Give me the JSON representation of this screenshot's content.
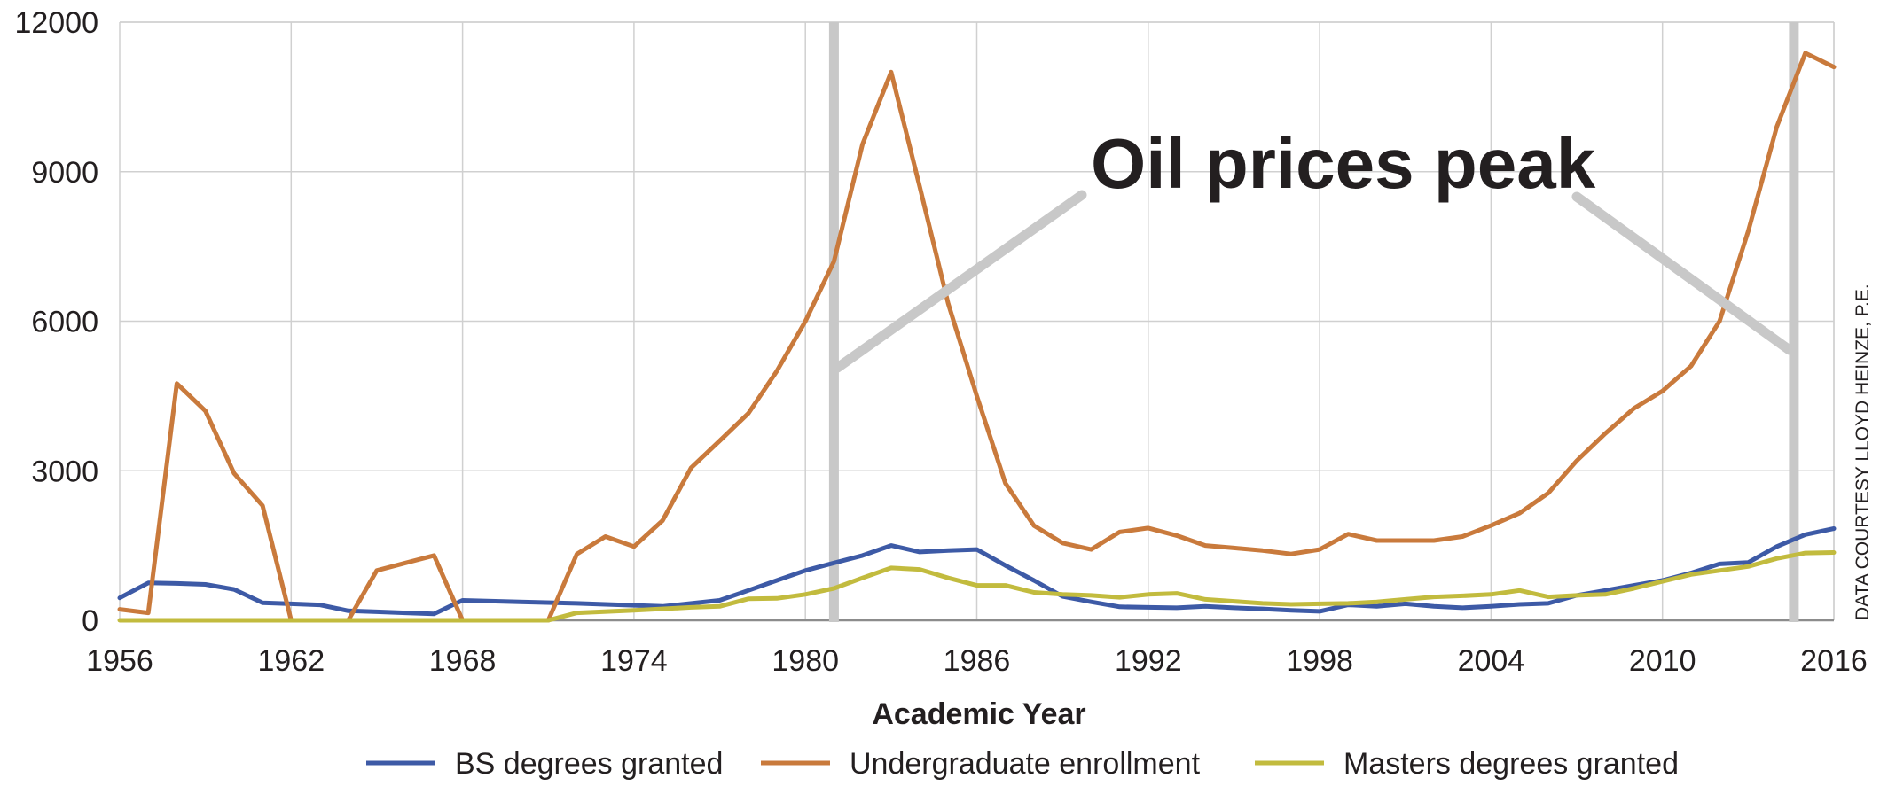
{
  "chart_data": {
    "type": "line",
    "title": "",
    "xlabel": "Academic Year",
    "ylabel": "",
    "xlim": [
      1956,
      2016
    ],
    "ylim": [
      0,
      12000
    ],
    "x_ticks": [
      1956,
      1962,
      1968,
      1974,
      1980,
      1986,
      1992,
      1998,
      2004,
      2010,
      2016
    ],
    "y_ticks": [
      0,
      3000,
      6000,
      9000,
      12000
    ],
    "grid": true,
    "legend_position": "bottom",
    "annotation": {
      "text": "Oil prices peak",
      "marked_years": [
        1981,
        2014.6
      ]
    },
    "credit": "DATA COURTESY LLOYD HEINZE, P.E.",
    "series": [
      {
        "name": "BS degrees granted",
        "color": "#3d5aa6",
        "points": [
          [
            1956,
            450
          ],
          [
            1957,
            750
          ],
          [
            1958,
            740
          ],
          [
            1959,
            720
          ],
          [
            1960,
            620
          ],
          [
            1961,
            350
          ],
          [
            1962,
            330
          ],
          [
            1963,
            310
          ],
          [
            1964,
            190
          ],
          [
            1965,
            170
          ],
          [
            1966,
            150
          ],
          [
            1967,
            130
          ],
          [
            1968,
            400
          ],
          [
            1970,
            370
          ],
          [
            1972,
            340
          ],
          [
            1974,
            300
          ],
          [
            1975,
            280
          ],
          [
            1977,
            400
          ],
          [
            1978,
            600
          ],
          [
            1979,
            800
          ],
          [
            1980,
            1000
          ],
          [
            1981,
            1150
          ],
          [
            1982,
            1300
          ],
          [
            1983,
            1500
          ],
          [
            1984,
            1370
          ],
          [
            1985,
            1400
          ],
          [
            1986,
            1420
          ],
          [
            1987,
            1100
          ],
          [
            1988,
            800
          ],
          [
            1989,
            480
          ],
          [
            1990,
            370
          ],
          [
            1991,
            270
          ],
          [
            1992,
            260
          ],
          [
            1993,
            250
          ],
          [
            1994,
            280
          ],
          [
            1995,
            250
          ],
          [
            1996,
            230
          ],
          [
            1997,
            200
          ],
          [
            1998,
            180
          ],
          [
            1999,
            310
          ],
          [
            2000,
            280
          ],
          [
            2001,
            330
          ],
          [
            2002,
            280
          ],
          [
            2003,
            250
          ],
          [
            2004,
            280
          ],
          [
            2005,
            320
          ],
          [
            2006,
            340
          ],
          [
            2007,
            500
          ],
          [
            2008,
            600
          ],
          [
            2009,
            700
          ],
          [
            2010,
            800
          ],
          [
            2011,
            950
          ],
          [
            2012,
            1130
          ],
          [
            2013,
            1160
          ],
          [
            2014,
            1480
          ],
          [
            2015,
            1720
          ],
          [
            2016,
            1840
          ]
        ]
      },
      {
        "name": "Undergraduate enrollment",
        "color": "#c97a3c",
        "points": [
          [
            1956,
            220
          ],
          [
            1957,
            150
          ],
          [
            1958,
            4750
          ],
          [
            1959,
            4200
          ],
          [
            1960,
            2950
          ],
          [
            1961,
            2300
          ],
          [
            1962,
            0
          ],
          [
            1963,
            0
          ],
          [
            1964,
            0
          ],
          [
            1965,
            1000
          ],
          [
            1966,
            1150
          ],
          [
            1967,
            1300
          ],
          [
            1968,
            0
          ],
          [
            1970,
            0
          ],
          [
            1971,
            0
          ],
          [
            1972,
            1330
          ],
          [
            1973,
            1680
          ],
          [
            1974,
            1480
          ],
          [
            1975,
            2000
          ],
          [
            1976,
            3060
          ],
          [
            1977,
            3600
          ],
          [
            1978,
            4150
          ],
          [
            1979,
            5000
          ],
          [
            1980,
            6000
          ],
          [
            1981,
            7200
          ],
          [
            1982,
            9550
          ],
          [
            1983,
            11000
          ],
          [
            1984,
            8700
          ],
          [
            1985,
            6350
          ],
          [
            1986,
            4500
          ],
          [
            1987,
            2750
          ],
          [
            1988,
            1900
          ],
          [
            1989,
            1550
          ],
          [
            1990,
            1420
          ],
          [
            1991,
            1770
          ],
          [
            1992,
            1850
          ],
          [
            1993,
            1700
          ],
          [
            1994,
            1500
          ],
          [
            1995,
            1450
          ],
          [
            1996,
            1400
          ],
          [
            1997,
            1330
          ],
          [
            1998,
            1420
          ],
          [
            1999,
            1730
          ],
          [
            2000,
            1600
          ],
          [
            2001,
            1600
          ],
          [
            2002,
            1600
          ],
          [
            2003,
            1680
          ],
          [
            2004,
            1900
          ],
          [
            2005,
            2150
          ],
          [
            2006,
            2550
          ],
          [
            2007,
            3200
          ],
          [
            2008,
            3750
          ],
          [
            2009,
            4250
          ],
          [
            2010,
            4600
          ],
          [
            2011,
            5100
          ],
          [
            2012,
            6000
          ],
          [
            2013,
            7800
          ],
          [
            2014,
            9900
          ],
          [
            2015,
            11380
          ],
          [
            2016,
            11100
          ]
        ]
      },
      {
        "name": "Masters degrees granted",
        "color": "#c2bb3e",
        "points": [
          [
            1956,
            0
          ],
          [
            1962,
            0
          ],
          [
            1968,
            0
          ],
          [
            1971,
            0
          ],
          [
            1972,
            150
          ],
          [
            1974,
            200
          ],
          [
            1976,
            260
          ],
          [
            1977,
            280
          ],
          [
            1978,
            430
          ],
          [
            1979,
            440
          ],
          [
            1980,
            520
          ],
          [
            1981,
            640
          ],
          [
            1982,
            850
          ],
          [
            1983,
            1050
          ],
          [
            1984,
            1020
          ],
          [
            1985,
            850
          ],
          [
            1986,
            700
          ],
          [
            1987,
            700
          ],
          [
            1988,
            560
          ],
          [
            1989,
            520
          ],
          [
            1990,
            500
          ],
          [
            1991,
            460
          ],
          [
            1992,
            520
          ],
          [
            1993,
            540
          ],
          [
            1994,
            420
          ],
          [
            1995,
            380
          ],
          [
            1996,
            340
          ],
          [
            1997,
            320
          ],
          [
            1998,
            330
          ],
          [
            1999,
            340
          ],
          [
            2000,
            370
          ],
          [
            2001,
            420
          ],
          [
            2002,
            470
          ],
          [
            2003,
            490
          ],
          [
            2004,
            520
          ],
          [
            2005,
            600
          ],
          [
            2006,
            470
          ],
          [
            2007,
            500
          ],
          [
            2008,
            520
          ],
          [
            2009,
            640
          ],
          [
            2010,
            780
          ],
          [
            2011,
            920
          ],
          [
            2012,
            1000
          ],
          [
            2013,
            1080
          ],
          [
            2014,
            1240
          ],
          [
            2015,
            1350
          ],
          [
            2016,
            1360
          ]
        ]
      }
    ]
  }
}
